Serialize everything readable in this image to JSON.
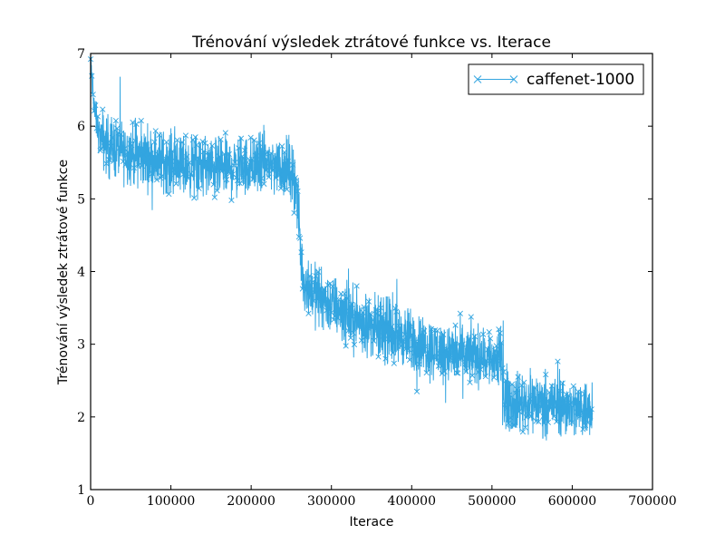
{
  "chart_data": {
    "type": "line",
    "title": "Trénování výsledek ztrátové funkce vs. Iterace",
    "xlabel": "Iterace",
    "ylabel": "Trénování výsledek ztrátové funkce",
    "xlim": [
      0,
      700000
    ],
    "ylim": [
      1,
      7
    ],
    "x_ticks": [
      "0",
      "100000",
      "200000",
      "300000",
      "400000",
      "500000",
      "600000",
      "700000"
    ],
    "y_ticks": [
      "1",
      "2",
      "3",
      "4",
      "5",
      "6",
      "7"
    ],
    "grid": false,
    "legend_position": "top-right",
    "series": [
      {
        "name": "caffenet-1000",
        "color": "#33a5e0",
        "marker": "x",
        "x": [
          0,
          2000,
          5000,
          10000,
          20000,
          40000,
          60000,
          80000,
          100000,
          120000,
          140000,
          160000,
          180000,
          200000,
          220000,
          240000,
          250000,
          256000,
          260000,
          262000,
          265000,
          270000,
          280000,
          300000,
          320000,
          340000,
          360000,
          380000,
          400000,
          420000,
          440000,
          460000,
          480000,
          500000,
          512000,
          516000,
          520000,
          530000,
          550000,
          570000,
          590000,
          610000,
          625000
        ],
        "y": [
          6.9,
          6.6,
          6.2,
          5.9,
          5.75,
          5.65,
          5.6,
          5.55,
          5.5,
          5.45,
          5.45,
          5.4,
          5.45,
          5.45,
          5.5,
          5.45,
          5.4,
          5.2,
          4.6,
          4.2,
          3.9,
          3.8,
          3.7,
          3.55,
          3.4,
          3.3,
          3.2,
          3.15,
          3.05,
          2.95,
          2.9,
          2.85,
          2.85,
          2.8,
          2.8,
          2.3,
          2.2,
          2.2,
          2.2,
          2.2,
          2.15,
          2.1,
          2.15
        ],
        "noise_amplitude": 0.45,
        "max_y": 6.95,
        "min_y": 1.25
      }
    ]
  }
}
